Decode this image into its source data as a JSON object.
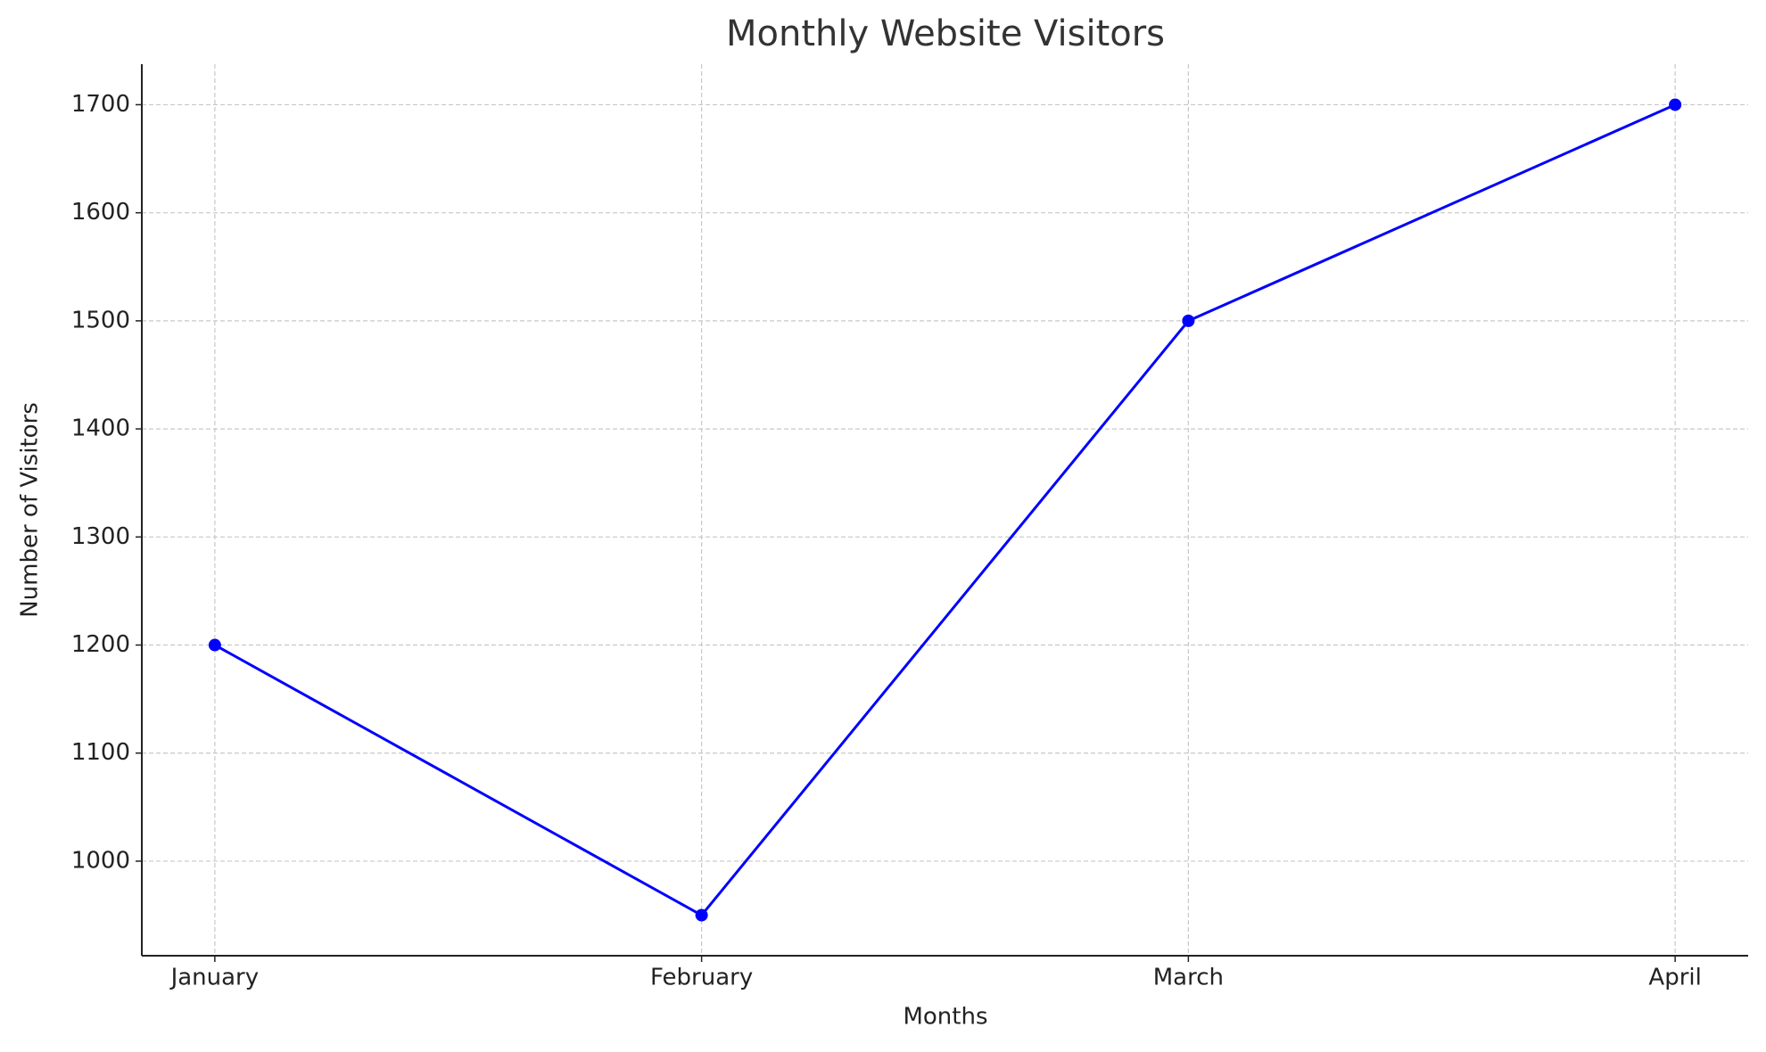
{
  "chart_data": {
    "type": "line",
    "title": "Monthly Website Visitors",
    "xlabel": "Months",
    "ylabel": "Number of Visitors",
    "categories": [
      "January",
      "February",
      "March",
      "April"
    ],
    "values": [
      1200,
      950,
      1500,
      1700
    ],
    "color": "#0000ff",
    "ylim": [
      912.5,
      1737.5
    ],
    "yticks": [
      1000,
      1100,
      1200,
      1300,
      1400,
      1500,
      1600,
      1700
    ],
    "grid": true
  }
}
